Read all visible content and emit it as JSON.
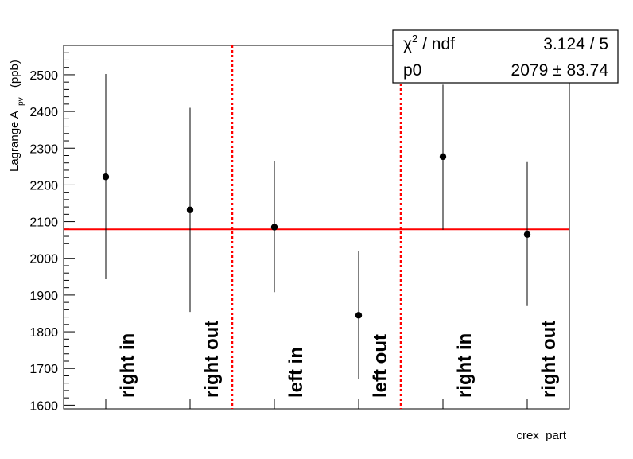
{
  "chart_data": {
    "type": "scatter",
    "xlabel": "crex_part",
    "ylabel_main": "Lagrange A",
    "ylabel_sub": "pv",
    "ylabel_unit": "(ppb)",
    "ylim": [
      1590,
      2580
    ],
    "yticks": [
      1600,
      1700,
      1800,
      1900,
      2000,
      2100,
      2200,
      2300,
      2400,
      2500
    ],
    "categories": [
      "right in",
      "right out",
      "left in",
      "left out",
      "right in",
      "right out"
    ],
    "series": [
      {
        "values": [
          2222,
          2132,
          2085,
          1845,
          2277,
          2065
        ],
        "err_low": [
          1943,
          1854,
          1908,
          1671,
          2078,
          1870
        ],
        "err_high": [
          2502,
          2410,
          2264,
          2019,
          2473,
          2262
        ]
      }
    ],
    "fit": {
      "p0": 2079,
      "color": "#ff0000"
    },
    "dividers_after_category": [
      2,
      4
    ],
    "divider_color": "#ff0000",
    "grid": false,
    "stats_box": {
      "row1_label": "χ",
      "row1_sup": "2",
      "row1_label_rest": " / ndf",
      "row1_value": "3.124 / 5",
      "row2_label": "p0",
      "row2_value": "2079 ± 83.74"
    }
  }
}
